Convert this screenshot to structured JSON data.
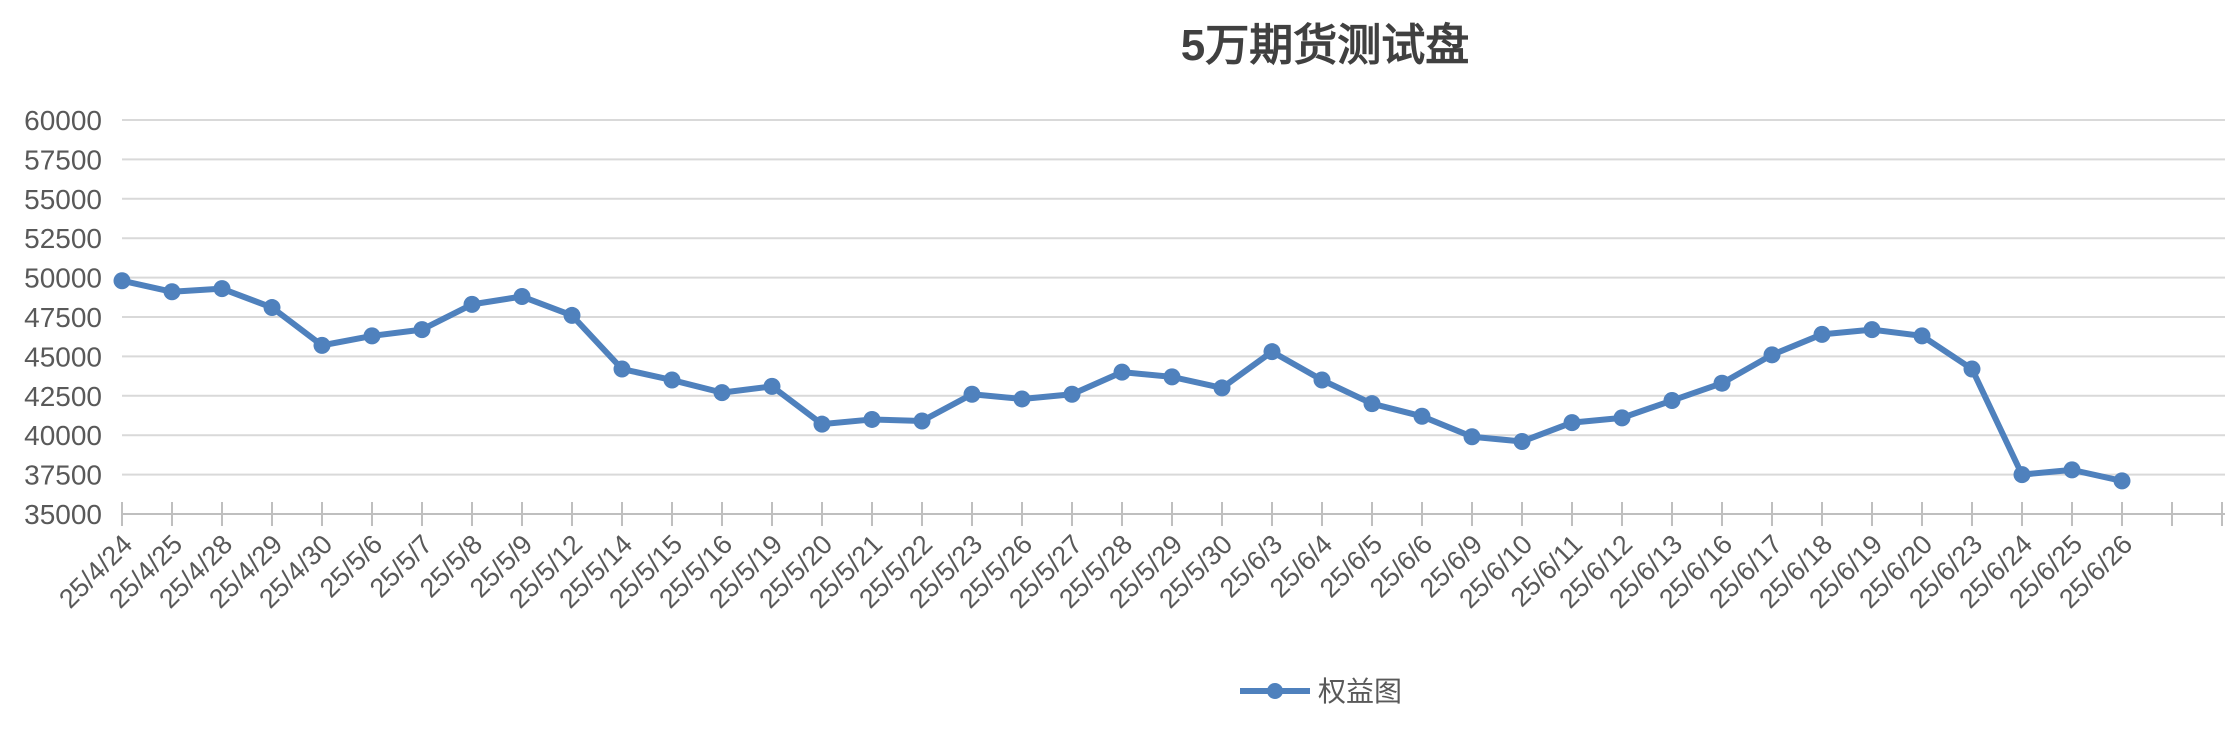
{
  "chart_data": {
    "type": "line",
    "title": "5万期货测试盘",
    "xlabel": "",
    "ylabel": "",
    "ylim": [
      35000,
      60000
    ],
    "yticks": [
      "60000",
      "57500",
      "55000",
      "52500",
      "50000",
      "47500",
      "45000",
      "42500",
      "40000",
      "37500",
      "35000"
    ],
    "grid": true,
    "legend_position": "bottom",
    "color": "#4f81bd",
    "categories": [
      "25/4/24",
      "25/4/25",
      "25/4/28",
      "25/4/29",
      "25/4/30",
      "25/5/6",
      "25/5/7",
      "25/5/8",
      "25/5/9",
      "25/5/12",
      "25/5/14",
      "25/5/15",
      "25/5/16",
      "25/5/19",
      "25/5/20",
      "25/5/21",
      "25/5/22",
      "25/5/23",
      "25/5/26",
      "25/5/27",
      "25/5/28",
      "25/5/29",
      "25/5/30",
      "25/6/3",
      "25/6/4",
      "25/6/5",
      "25/6/6",
      "25/6/9",
      "25/6/10",
      "25/6/11",
      "25/6/12",
      "25/6/13",
      "25/6/16",
      "25/6/17",
      "25/6/18",
      "25/6/19",
      "25/6/20",
      "25/6/23",
      "25/6/24",
      "25/6/25",
      "25/6/26"
    ],
    "series": [
      {
        "name": "权益图",
        "values": [
          49800,
          49100,
          49300,
          48100,
          45700,
          46300,
          46700,
          48300,
          48800,
          47600,
          44200,
          43500,
          42700,
          43100,
          40700,
          41000,
          40900,
          42600,
          42300,
          42600,
          44000,
          43700,
          43000,
          45300,
          43500,
          42000,
          41200,
          39900,
          39600,
          40800,
          41100,
          42200,
          43300,
          45100,
          46400,
          46700,
          46300,
          44200,
          37500,
          37800,
          37100
        ]
      }
    ]
  }
}
